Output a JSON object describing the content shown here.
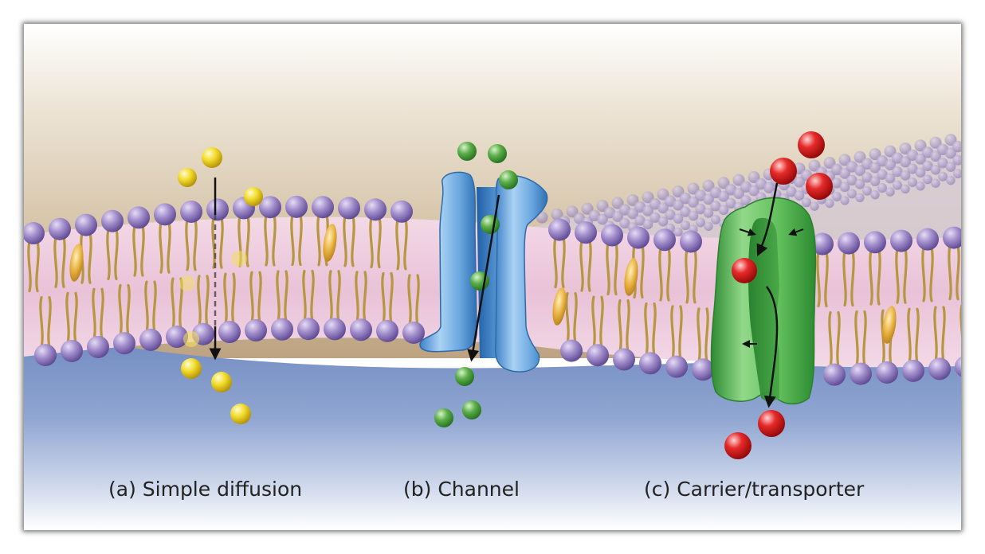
{
  "captions": {
    "a": "(a) Simple diffusion",
    "b": "(b) Channel",
    "c": "(c) Carrier/transporter"
  },
  "colors": {
    "extracellular": "#c5ae8e",
    "cytoplasm": "#7e97c8",
    "lipid_head": "#9a84c4",
    "lipid_tail": "#b89845",
    "membrane_core": "#f0cde0",
    "cholesterol": "#e0a93a",
    "solute_a": "#efd626",
    "solute_b": "#58a847",
    "solute_c": "#dc1f1f",
    "channel_protein": "#6ea8dc",
    "carrier_protein": "#5ebc5b"
  },
  "icons": {
    "solute_molecule": "sphere",
    "transport_path": "arrow-down"
  }
}
